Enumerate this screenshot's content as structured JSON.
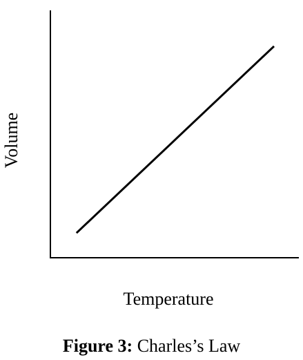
{
  "chart_data": {
    "type": "line",
    "title": "",
    "xlabel": "Temperature",
    "ylabel": "Volume",
    "grid": false,
    "legend": "none",
    "ticks": "none",
    "xlim": [
      0,
      100
    ],
    "ylim": [
      0,
      100
    ],
    "series": [
      {
        "x": [
          10.5,
          90.0
        ],
        "y": [
          10.0,
          85.5
        ]
      }
    ],
    "line_color": "#000000"
  },
  "caption": {
    "label": "Figure 3:",
    "text": "Charles’s Law"
  }
}
